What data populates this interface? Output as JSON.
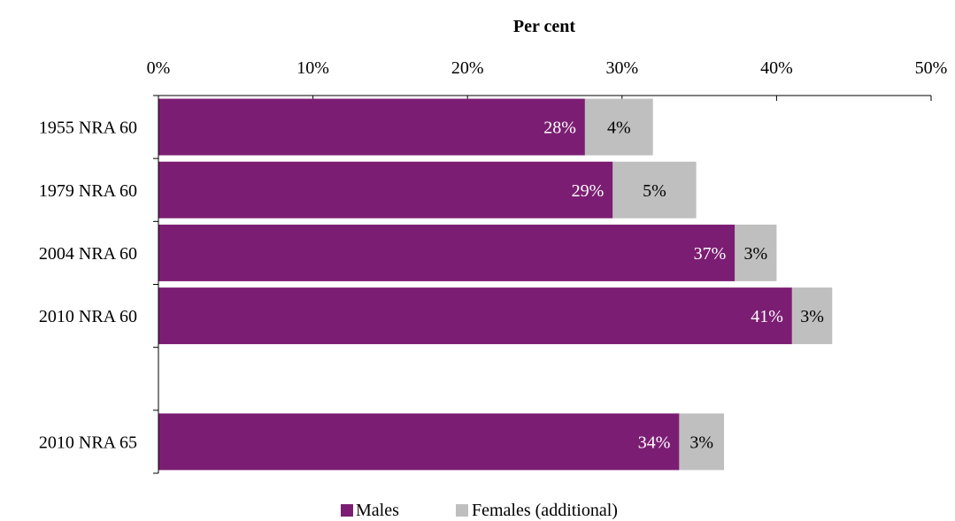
{
  "colors": {
    "males": "#7b1e73",
    "females": "#bfbfbf"
  },
  "chart_data": {
    "type": "bar",
    "orientation": "horizontal",
    "stacked": true,
    "title": "Per cent",
    "xlim": [
      0,
      50
    ],
    "x_ticks": [
      0,
      10,
      20,
      30,
      40,
      50
    ],
    "x_tick_labels": [
      "0%",
      "10%",
      "20%",
      "30%",
      "40%",
      "50%"
    ],
    "grid": false,
    "legend_position": "bottom",
    "categories": [
      "1955 NRA 60",
      "1979 NRA 60",
      "2004 NRA 60",
      "2010 NRA 60",
      "",
      "2010 NRA 65"
    ],
    "series": [
      {
        "name": "Males",
        "color": "#7b1e73",
        "values": [
          27.6,
          29.4,
          37.3,
          41.0,
          null,
          33.7
        ],
        "labels": [
          "28%",
          "29%",
          "37%",
          "41%",
          "",
          "34%"
        ]
      },
      {
        "name": "Females (additional)",
        "color": "#bfbfbf",
        "values": [
          4.4,
          5.4,
          2.7,
          2.6,
          null,
          2.9
        ],
        "labels": [
          "4%",
          "5%",
          "3%",
          "3%",
          "",
          "3%"
        ]
      }
    ]
  }
}
